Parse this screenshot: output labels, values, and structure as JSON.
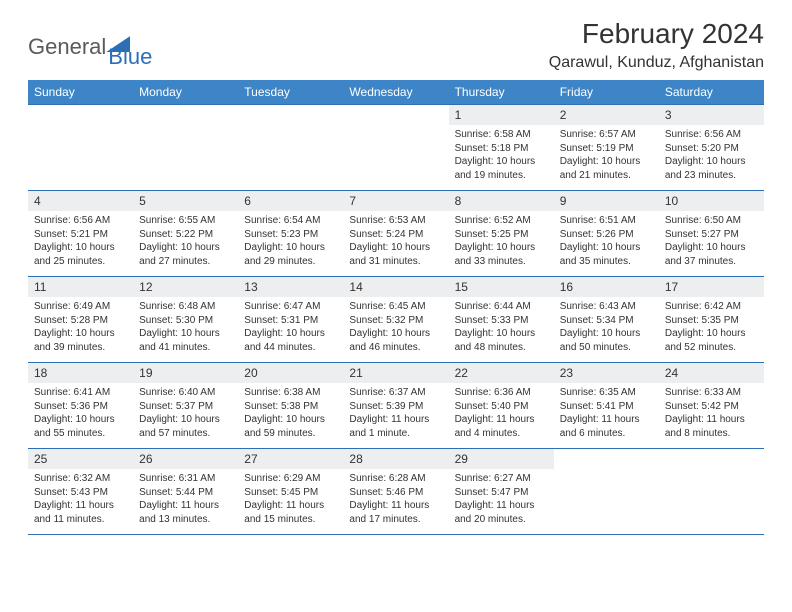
{
  "logo": {
    "part1": "General",
    "part2": "Blue"
  },
  "title": "February 2024",
  "location": "Qarawul, Kunduz, Afghanistan",
  "colors": {
    "header_bg": "#3d85c6",
    "header_text": "#ffffff",
    "daynum_bg": "#eceef0",
    "border": "#2d6fb5",
    "logo_blue": "#2d6fb5",
    "logo_gray": "#5a5a5a"
  },
  "dayNames": [
    "Sunday",
    "Monday",
    "Tuesday",
    "Wednesday",
    "Thursday",
    "Friday",
    "Saturday"
  ],
  "startOffset": 4,
  "daysInMonth": 29,
  "days": {
    "1": {
      "sunrise": "6:58 AM",
      "sunset": "5:18 PM",
      "daylight": "10 hours and 19 minutes."
    },
    "2": {
      "sunrise": "6:57 AM",
      "sunset": "5:19 PM",
      "daylight": "10 hours and 21 minutes."
    },
    "3": {
      "sunrise": "6:56 AM",
      "sunset": "5:20 PM",
      "daylight": "10 hours and 23 minutes."
    },
    "4": {
      "sunrise": "6:56 AM",
      "sunset": "5:21 PM",
      "daylight": "10 hours and 25 minutes."
    },
    "5": {
      "sunrise": "6:55 AM",
      "sunset": "5:22 PM",
      "daylight": "10 hours and 27 minutes."
    },
    "6": {
      "sunrise": "6:54 AM",
      "sunset": "5:23 PM",
      "daylight": "10 hours and 29 minutes."
    },
    "7": {
      "sunrise": "6:53 AM",
      "sunset": "5:24 PM",
      "daylight": "10 hours and 31 minutes."
    },
    "8": {
      "sunrise": "6:52 AM",
      "sunset": "5:25 PM",
      "daylight": "10 hours and 33 minutes."
    },
    "9": {
      "sunrise": "6:51 AM",
      "sunset": "5:26 PM",
      "daylight": "10 hours and 35 minutes."
    },
    "10": {
      "sunrise": "6:50 AM",
      "sunset": "5:27 PM",
      "daylight": "10 hours and 37 minutes."
    },
    "11": {
      "sunrise": "6:49 AM",
      "sunset": "5:28 PM",
      "daylight": "10 hours and 39 minutes."
    },
    "12": {
      "sunrise": "6:48 AM",
      "sunset": "5:30 PM",
      "daylight": "10 hours and 41 minutes."
    },
    "13": {
      "sunrise": "6:47 AM",
      "sunset": "5:31 PM",
      "daylight": "10 hours and 44 minutes."
    },
    "14": {
      "sunrise": "6:45 AM",
      "sunset": "5:32 PM",
      "daylight": "10 hours and 46 minutes."
    },
    "15": {
      "sunrise": "6:44 AM",
      "sunset": "5:33 PM",
      "daylight": "10 hours and 48 minutes."
    },
    "16": {
      "sunrise": "6:43 AM",
      "sunset": "5:34 PM",
      "daylight": "10 hours and 50 minutes."
    },
    "17": {
      "sunrise": "6:42 AM",
      "sunset": "5:35 PM",
      "daylight": "10 hours and 52 minutes."
    },
    "18": {
      "sunrise": "6:41 AM",
      "sunset": "5:36 PM",
      "daylight": "10 hours and 55 minutes."
    },
    "19": {
      "sunrise": "6:40 AM",
      "sunset": "5:37 PM",
      "daylight": "10 hours and 57 minutes."
    },
    "20": {
      "sunrise": "6:38 AM",
      "sunset": "5:38 PM",
      "daylight": "10 hours and 59 minutes."
    },
    "21": {
      "sunrise": "6:37 AM",
      "sunset": "5:39 PM",
      "daylight": "11 hours and 1 minute."
    },
    "22": {
      "sunrise": "6:36 AM",
      "sunset": "5:40 PM",
      "daylight": "11 hours and 4 minutes."
    },
    "23": {
      "sunrise": "6:35 AM",
      "sunset": "5:41 PM",
      "daylight": "11 hours and 6 minutes."
    },
    "24": {
      "sunrise": "6:33 AM",
      "sunset": "5:42 PM",
      "daylight": "11 hours and 8 minutes."
    },
    "25": {
      "sunrise": "6:32 AM",
      "sunset": "5:43 PM",
      "daylight": "11 hours and 11 minutes."
    },
    "26": {
      "sunrise": "6:31 AM",
      "sunset": "5:44 PM",
      "daylight": "11 hours and 13 minutes."
    },
    "27": {
      "sunrise": "6:29 AM",
      "sunset": "5:45 PM",
      "daylight": "11 hours and 15 minutes."
    },
    "28": {
      "sunrise": "6:28 AM",
      "sunset": "5:46 PM",
      "daylight": "11 hours and 17 minutes."
    },
    "29": {
      "sunrise": "6:27 AM",
      "sunset": "5:47 PM",
      "daylight": "11 hours and 20 minutes."
    }
  }
}
